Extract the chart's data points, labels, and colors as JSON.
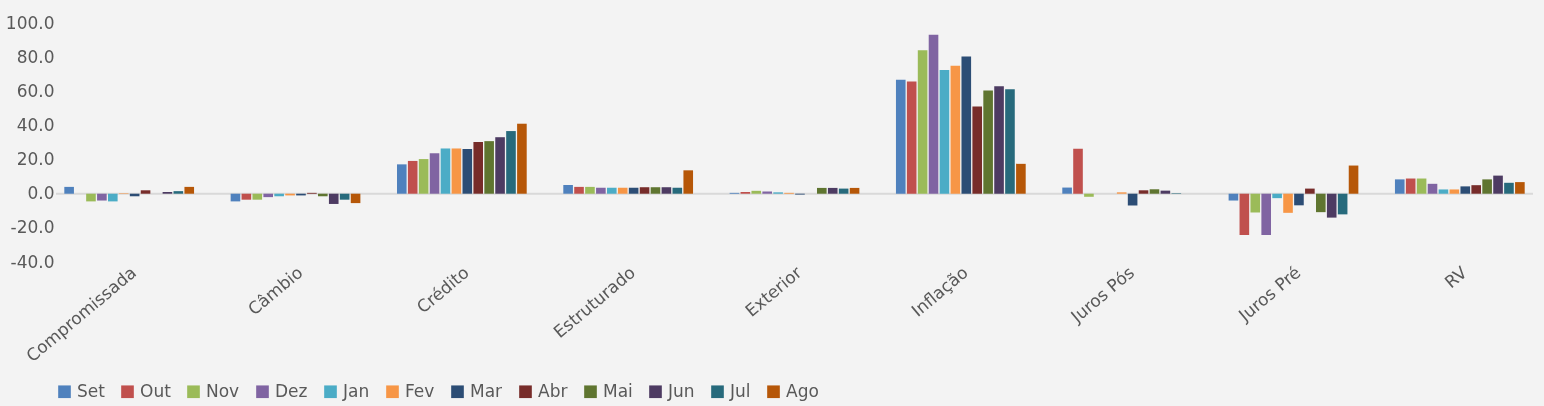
{
  "chart_data": {
    "type": "bar",
    "categories": [
      "Compromissada",
      "Câmbio",
      "Crédito",
      "Estruturado",
      "Exterior",
      "Inflação",
      "Juros Pós",
      "Juros Pré",
      "RV"
    ],
    "ylim": [
      -40,
      100
    ],
    "yticks": [
      {
        "value": -40,
        "label": "-40.0"
      },
      {
        "value": -20,
        "label": "-20.0"
      },
      {
        "value": 0,
        "label": "0.0"
      },
      {
        "value": 20,
        "label": "20.0"
      },
      {
        "value": 40,
        "label": "40.0"
      },
      {
        "value": 60,
        "label": "60.0"
      },
      {
        "value": 80,
        "label": "80.0"
      },
      {
        "value": 100,
        "label": "100.0"
      }
    ],
    "grid": false,
    "legend": "bottom",
    "ref_lines": [
      {
        "axis": "y",
        "value": 0,
        "color": "#d9d9d9"
      }
    ],
    "series": [
      {
        "name": "Set",
        "color": "#4f81bd",
        "values": [
          4,
          -4.5,
          17.2,
          5.1,
          0.5,
          66.7,
          3.6,
          -4,
          8.4
        ]
      },
      {
        "name": "Out",
        "color": "#c0504d",
        "values": [
          0,
          -3.5,
          19.2,
          4,
          1,
          65.7,
          26.3,
          -24.2,
          8.9
        ]
      },
      {
        "name": "Nov",
        "color": "#9bbb59",
        "values": [
          -4.5,
          -3.5,
          20.3,
          4,
          1.7,
          84,
          -1.8,
          -11,
          8.9
        ]
      },
      {
        "name": "Dez",
        "color": "#8064a2",
        "values": [
          -4,
          -2,
          23.7,
          3.5,
          1.3,
          93.1,
          0,
          -24.2,
          5.8
        ]
      },
      {
        "name": "Jan",
        "color": "#4bacc6",
        "values": [
          -4.5,
          -1.5,
          26.5,
          3.5,
          0.8,
          72.5,
          0,
          -2.6,
          2.5
        ]
      },
      {
        "name": "Fev",
        "color": "#f79646",
        "values": [
          0.3,
          -1,
          26.5,
          3.5,
          0.5,
          74.9,
          0.8,
          -11.2,
          2.5
        ]
      },
      {
        "name": "Mar",
        "color": "#2c4d75",
        "values": [
          -1.5,
          -1,
          26.2,
          3.5,
          -0.5,
          80.4,
          -6.9,
          -6.8,
          4.3
        ]
      },
      {
        "name": "Abr",
        "color": "#772c2a",
        "values": [
          2,
          0.5,
          30.3,
          3.8,
          0,
          51.1,
          2,
          3,
          5
        ]
      },
      {
        "name": "Mai",
        "color": "#5f7530",
        "values": [
          0,
          -1.5,
          30.8,
          3.8,
          3.4,
          60.4,
          2.6,
          -10.8,
          8.4
        ]
      },
      {
        "name": "Jun",
        "color": "#4d3b62",
        "values": [
          1,
          -6,
          33.1,
          3.8,
          3.4,
          62.9,
          1.8,
          -14,
          10.6
        ]
      },
      {
        "name": "Jul",
        "color": "#276a7c",
        "values": [
          1.5,
          -3.5,
          36.7,
          3.5,
          3,
          61.2,
          0.3,
          -12.1,
          6.4
        ]
      },
      {
        "name": "Ago",
        "color": "#b65708",
        "values": [
          4,
          -5.5,
          41,
          13.7,
          3.4,
          17.5,
          0,
          16.5,
          6.8
        ]
      }
    ]
  }
}
